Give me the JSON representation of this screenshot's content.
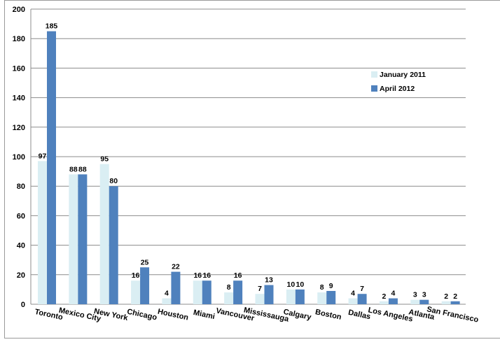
{
  "chart_data": {
    "type": "bar",
    "categories": [
      "Toronto",
      "Mexico City",
      "New York",
      "Chicago",
      "Houston",
      "Miami",
      "Vancouver",
      "Mississauga",
      "Calgary",
      "Boston",
      "Dallas",
      "Los Angeles",
      "Atlanta",
      "San Francisco"
    ],
    "series": [
      {
        "name": "January 2011",
        "values": [
          97,
          88,
          95,
          16,
          4,
          16,
          8,
          7,
          10,
          8,
          4,
          2,
          3,
          2
        ],
        "color": "#daeef3"
      },
      {
        "name": "April 2012",
        "values": [
          185,
          88,
          80,
          25,
          22,
          16,
          16,
          13,
          10,
          9,
          7,
          4,
          3,
          2
        ],
        "color": "#4f81bd"
      }
    ],
    "ylim": [
      0,
      200
    ],
    "yticks": [
      0,
      20,
      40,
      60,
      80,
      100,
      120,
      140,
      160,
      180,
      200
    ],
    "grid": true,
    "legend_position": "right",
    "title": "",
    "xlabel": "",
    "ylabel": ""
  }
}
